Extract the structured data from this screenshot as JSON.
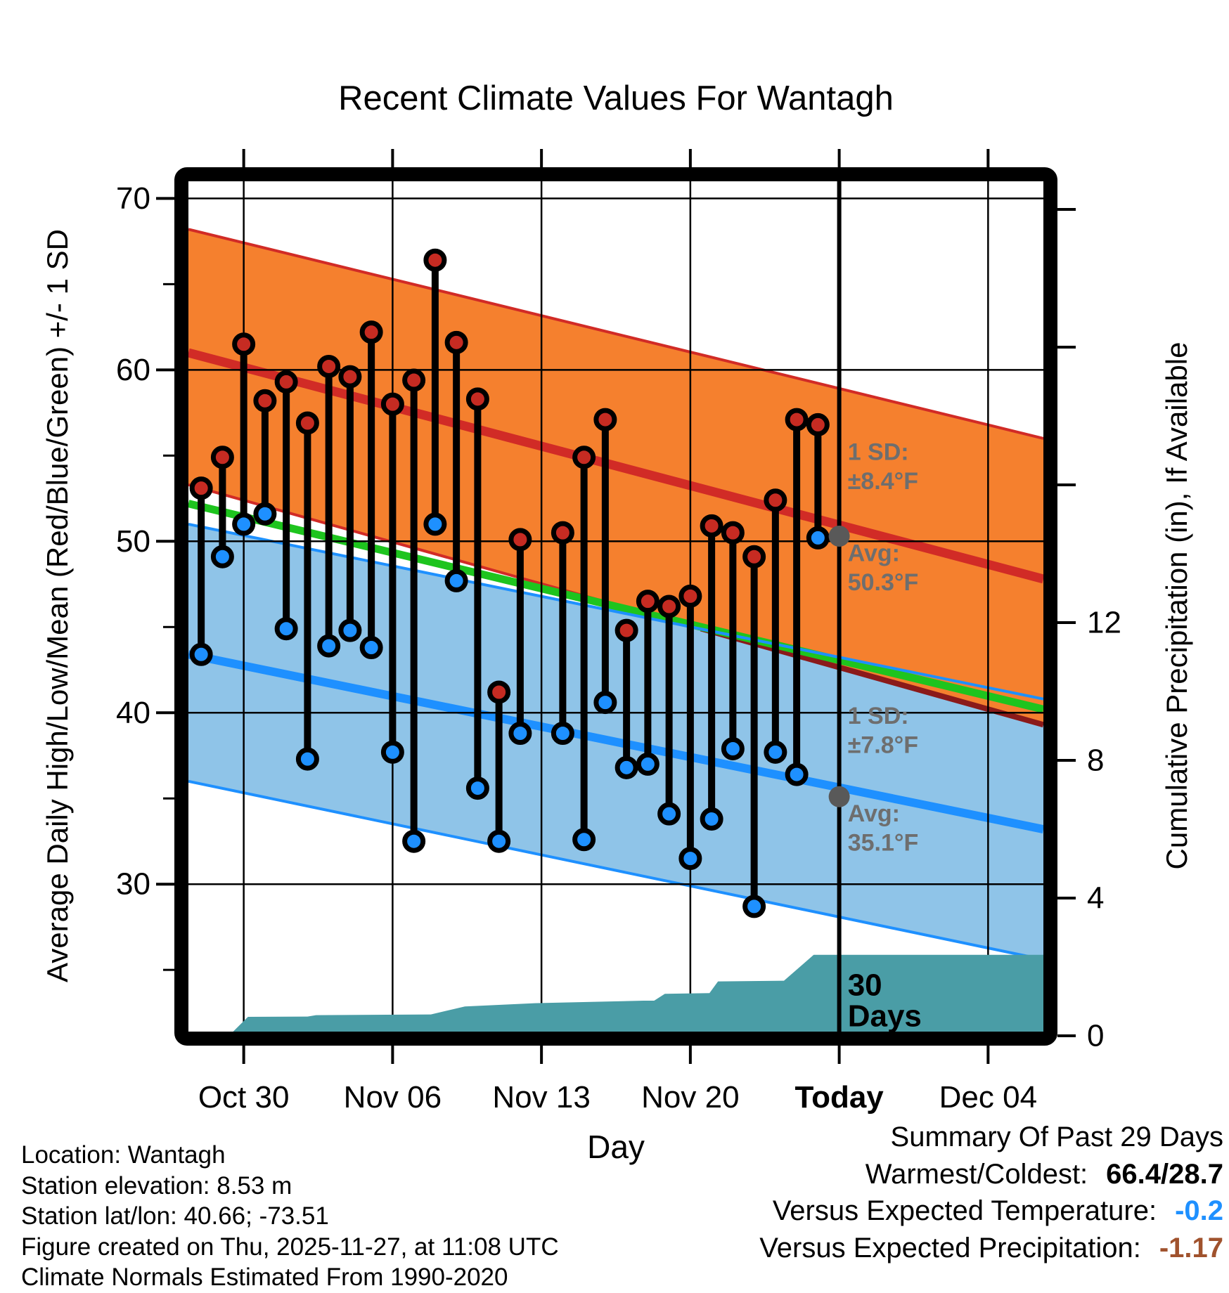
{
  "title": "Recent Climate Values For Wantagh",
  "axes": {
    "x": {
      "label": "Day",
      "day0": "Oct 27",
      "domain": [
        0.4,
        40.6
      ],
      "ticks": [
        {
          "day": 3,
          "label": "Oct 30",
          "bold": false
        },
        {
          "day": 10,
          "label": "Nov 06",
          "bold": false
        },
        {
          "day": 17,
          "label": "Nov 13",
          "bold": false
        },
        {
          "day": 24,
          "label": "Nov 20",
          "bold": false
        },
        {
          "day": 31,
          "label": "Today",
          "bold": true
        },
        {
          "day": 38,
          "label": "Dec 04",
          "bold": false
        }
      ]
    },
    "y_left": {
      "label": "Average Daily High/Low/Mean (Red/Blue/Green) +/- 1 SD",
      "domain": [
        21.4,
        71.0
      ],
      "major_ticks": [
        30,
        40,
        50,
        60,
        70
      ],
      "minor_ticks": [
        25,
        35,
        45,
        55,
        65
      ]
    },
    "y_right": {
      "label": "Cumulative Precipitation (in), If Available",
      "major_ticks": [
        0,
        4,
        8,
        12
      ],
      "unlabeled_ticks": [
        16,
        20,
        24
      ]
    }
  },
  "chart_data": {
    "type": "composite (daily high/low lollipop scatter + climatology band areas + cumulative precipitation area)",
    "x_unit": "days since Oct 27",
    "daily_observations": [
      {
        "date": "Oct 28",
        "day": 1,
        "high": 53.1,
        "low": 43.4
      },
      {
        "date": "Oct 29",
        "day": 2,
        "high": 54.9,
        "low": 49.1
      },
      {
        "date": "Oct 30",
        "day": 3,
        "high": 61.5,
        "low": 51.0
      },
      {
        "date": "Oct 31",
        "day": 4,
        "high": 58.2,
        "low": 51.6
      },
      {
        "date": "Nov 01",
        "day": 5,
        "high": 59.3,
        "low": 44.9
      },
      {
        "date": "Nov 02",
        "day": 6,
        "high": 56.9,
        "low": 37.3
      },
      {
        "date": "Nov 03",
        "day": 7,
        "high": 60.2,
        "low": 43.9
      },
      {
        "date": "Nov 04",
        "day": 8,
        "high": 59.6,
        "low": 44.8
      },
      {
        "date": "Nov 05",
        "day": 9,
        "high": 62.2,
        "low": 43.8
      },
      {
        "date": "Nov 06",
        "day": 10,
        "high": 58.0,
        "low": 37.7
      },
      {
        "date": "Nov 07",
        "day": 11,
        "high": 59.4,
        "low": 32.5
      },
      {
        "date": "Nov 08",
        "day": 12,
        "high": 66.4,
        "low": 51.0
      },
      {
        "date": "Nov 09",
        "day": 13,
        "high": 61.6,
        "low": 47.7
      },
      {
        "date": "Nov 10",
        "day": 14,
        "high": 58.3,
        "low": 35.6
      },
      {
        "date": "Nov 11",
        "day": 15,
        "high": 41.2,
        "low": 32.5
      },
      {
        "date": "Nov 12",
        "day": 16,
        "high": 50.1,
        "low": 38.8
      },
      {
        "date": "Nov 14",
        "day": 18,
        "high": 50.5,
        "low": 38.8
      },
      {
        "date": "Nov 15",
        "day": 19,
        "high": 54.9,
        "low": 32.6
      },
      {
        "date": "Nov 16",
        "day": 20,
        "high": 57.1,
        "low": 40.6
      },
      {
        "date": "Nov 17",
        "day": 21,
        "high": 44.8,
        "low": 36.8
      },
      {
        "date": "Nov 18",
        "day": 22,
        "high": 46.5,
        "low": 37.0
      },
      {
        "date": "Nov 19",
        "day": 23,
        "high": 46.2,
        "low": 34.1
      },
      {
        "date": "Nov 20",
        "day": 24,
        "high": 46.8,
        "low": 31.5
      },
      {
        "date": "Nov 21",
        "day": 25,
        "high": 50.9,
        "low": 33.8
      },
      {
        "date": "Nov 22",
        "day": 26,
        "high": 50.5,
        "low": 37.9
      },
      {
        "date": "Nov 23",
        "day": 27,
        "high": 49.1,
        "low": 28.7
      },
      {
        "date": "Nov 24",
        "day": 28,
        "high": 52.4,
        "low": 37.7
      },
      {
        "date": "Nov 25",
        "day": 29,
        "high": 57.1,
        "low": 36.4
      },
      {
        "date": "Nov 26",
        "day": 30,
        "high": 56.8,
        "low": 50.2
      }
    ],
    "missing_days": [
      {
        "date": "Nov 13",
        "day": 17
      }
    ],
    "climatology_endpoints_F": {
      "note": "values at plot left edge (day 0.4) and right edge (day 40.6), linear between",
      "high_plus_sd": [
        68.2,
        56.0
      ],
      "high_avg": [
        61.0,
        47.8
      ],
      "high_minus_sd": [
        53.3,
        39.3
      ],
      "mean": [
        52.2,
        40.2
      ],
      "low_plus_sd": [
        51.0,
        40.8
      ],
      "low_avg": [
        43.4,
        33.2
      ],
      "low_minus_sd": [
        36.0,
        25.6
      ]
    },
    "precip_cumulative_in": [
      [
        2.3,
        0.0
      ],
      [
        3.2,
        0.55
      ],
      [
        6.0,
        0.56
      ],
      [
        6.4,
        0.6
      ],
      [
        11.8,
        0.62
      ],
      [
        13.4,
        0.85
      ],
      [
        16.8,
        0.95
      ],
      [
        21.8,
        1.02
      ],
      [
        22.3,
        1.02
      ],
      [
        22.8,
        1.22
      ],
      [
        24.9,
        1.24
      ],
      [
        25.3,
        1.58
      ],
      [
        28.4,
        1.6
      ],
      [
        29.8,
        2.35
      ],
      [
        40.6,
        2.35
      ]
    ]
  },
  "today": {
    "day": 31,
    "window_label_lines": [
      "30",
      "Days"
    ],
    "window_label_day": 31.4,
    "window_label_temps": [
      24.1,
      22.3
    ],
    "markers": [
      {
        "name": "today-avg-high-dot",
        "temp": 50.3
      },
      {
        "name": "today-avg-low-dot",
        "temp": 35.1
      }
    ]
  },
  "annotations": [
    {
      "lines": [
        "1 SD:",
        "±8.4°F"
      ],
      "day": 31.4,
      "temps": [
        55.2,
        53.5
      ]
    },
    {
      "lines": [
        "Avg:",
        "50.3°F"
      ],
      "day": 31.4,
      "temps": [
        49.3,
        47.6
      ]
    },
    {
      "lines": [
        "1 SD:",
        "±7.8°F"
      ],
      "day": 31.4,
      "temps": [
        39.8,
        38.1
      ]
    },
    {
      "lines": [
        "Avg:",
        "35.1°F"
      ],
      "day": 31.4,
      "temps": [
        34.1,
        32.4
      ]
    }
  ],
  "footer_left": [
    "Location: Wantagh",
    "Station elevation: 8.53 m",
    "Station lat/lon: 40.66; -73.51",
    "Figure created on Thu, 2025-11-27, at 11:08 UTC",
    "Climate Normals Estimated From 1990-2020"
  ],
  "summary": {
    "title": "Summary Of Past 29 Days",
    "rows": [
      {
        "label": "Warmest/Coldest:",
        "value": "66.4/28.7",
        "value_color": "#000000"
      },
      {
        "label": "Versus Expected Temperature:",
        "value": "-0.2",
        "value_color": "#1E90FF"
      },
      {
        "label": "Versus Expected Precipitation:",
        "value": "-1.17",
        "value_color": "#A0522D"
      }
    ]
  },
  "colors": {
    "high_band": "#F5802E",
    "high_edge": "#D12B26",
    "high_edge_dark": "#8B1A1A",
    "high_avg_line": "#D12B26",
    "mean_line": "#1EC41E",
    "low_band": "#8FC4E8",
    "low_edge": "#1E90FF",
    "low_avg_line": "#1E90FF",
    "precip_fill": "#4A9DA6",
    "marker_high": "#C62B22",
    "marker_low": "#1E90FF",
    "marker_ring": "#000000",
    "today_dot": "#595959",
    "annotation_text": "#6E6E6E",
    "frame": "#000000"
  }
}
